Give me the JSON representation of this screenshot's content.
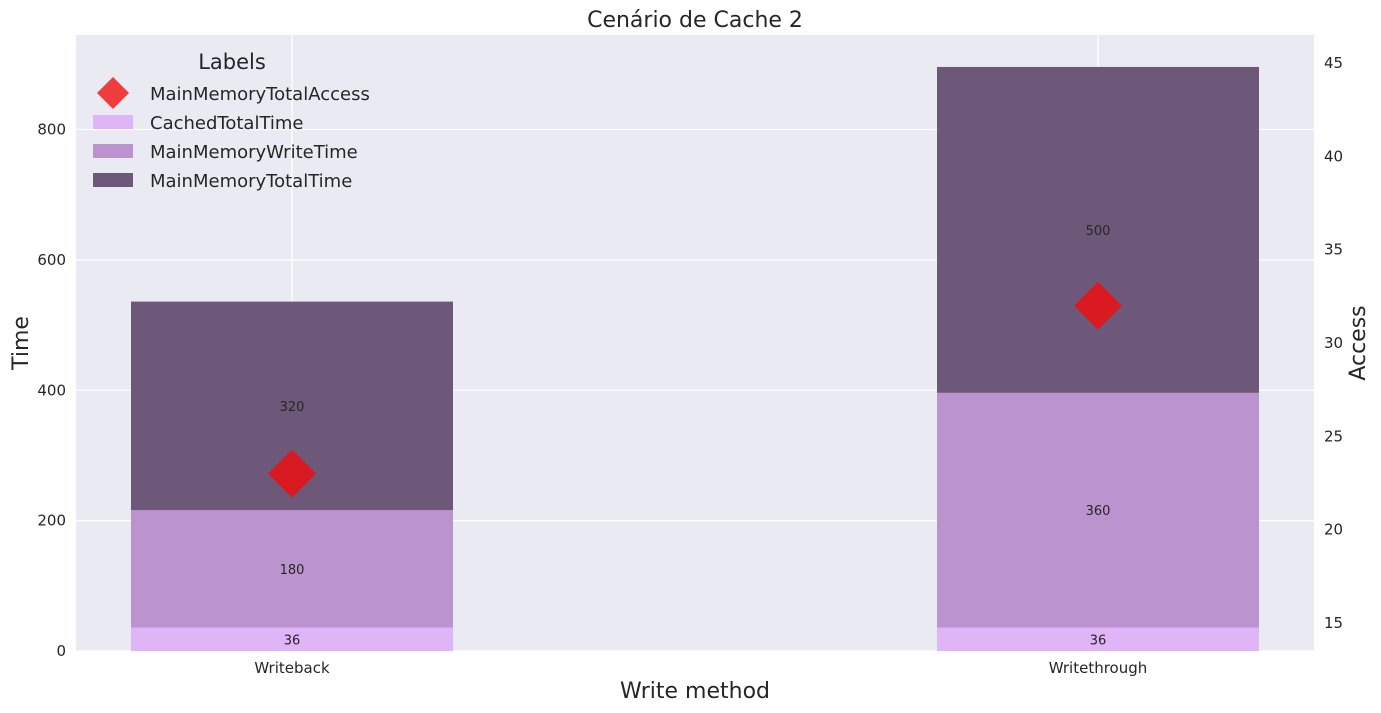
{
  "chart_data": {
    "type": "bar",
    "title": "Cenário de Cache 2",
    "xlabel": "Write method",
    "ylabel": "Time",
    "y2label": "Access",
    "categories": [
      "Writeback",
      "Writethrough"
    ],
    "stacked": true,
    "ylim": [
      0,
      945
    ],
    "y2lim": [
      13.5,
      46.5
    ],
    "yticks": [
      0,
      200,
      400,
      600,
      800
    ],
    "y2ticks": [
      15,
      20,
      25,
      30,
      35,
      40,
      45
    ],
    "grid": true,
    "series": [
      {
        "name": "CachedTotalTime",
        "values": [
          36,
          36
        ],
        "color": "#e0b5f7",
        "data_labels": [
          "36",
          "36"
        ]
      },
      {
        "name": "MainMemoryWriteTime",
        "values": [
          180,
          360
        ],
        "color": "#bb94cf",
        "data_labels": [
          "180",
          "360"
        ]
      },
      {
        "name": "MainMemoryTotalTime",
        "values": [
          320,
          500
        ],
        "color": "#6e5879",
        "data_labels": [
          "320",
          "500"
        ]
      }
    ],
    "markers": {
      "name": "MainMemoryTotalAccess",
      "values": [
        23,
        32
      ],
      "axis": "right",
      "shape": "diamond",
      "color": "#d91a20"
    },
    "legend": {
      "title": "Labels",
      "placement": "top-left",
      "entries": [
        "MainMemoryTotalAccess",
        "CachedTotalTime",
        "MainMemoryWriteTime",
        "MainMemoryTotalTime"
      ]
    },
    "colors": {
      "plot_background": "#eaeaf2",
      "grid": "#ffffff",
      "marker_legend": "#f03c3c"
    }
  }
}
